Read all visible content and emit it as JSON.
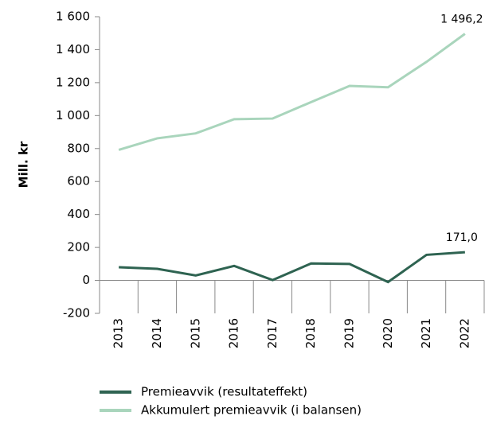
{
  "chart_data": {
    "type": "line",
    "y_label": "Mill. kr",
    "categories": [
      "2013",
      "2014",
      "2015",
      "2016",
      "2017",
      "2018",
      "2019",
      "2020",
      "2021",
      "2022"
    ],
    "series": [
      {
        "name": "Premieavvik (resultateffekt)",
        "color": "#2e6351",
        "values": [
          80,
          70,
          30,
          88,
          2,
          103,
          100,
          -10,
          155,
          171.0
        ],
        "value_labels": [
          null,
          null,
          null,
          null,
          null,
          null,
          null,
          null,
          null,
          "171,0"
        ]
      },
      {
        "name": "Akkumulert premieavvik (i balansen)",
        "color": "#a9d5bc",
        "values": [
          792,
          862,
          892,
          978,
          982,
          1082,
          1180,
          1172,
          1326,
          1496.2
        ],
        "value_labels": [
          null,
          null,
          null,
          null,
          null,
          null,
          null,
          null,
          null,
          "1 496,2"
        ]
      }
    ],
    "ylim": [
      -200,
      1600
    ],
    "yticks": [
      -200,
      0,
      200,
      400,
      600,
      800,
      {
        "value": 1000,
        "label": "1 000"
      },
      {
        "value": 1200,
        "label": "1 200"
      },
      {
        "value": 1400,
        "label": "1 400"
      },
      {
        "value": 1600,
        "label": "1 600"
      }
    ],
    "grid": false,
    "legend": "bottom"
  }
}
